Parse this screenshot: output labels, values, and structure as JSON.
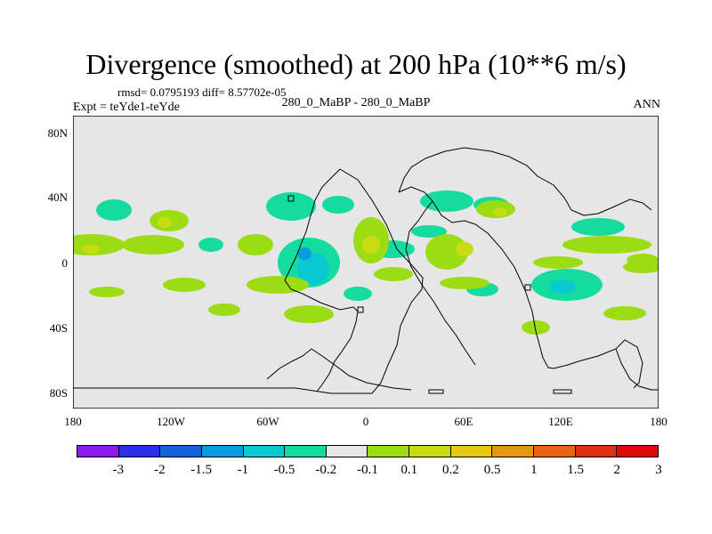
{
  "title": "Divergence (smoothed) at 200 hPa (10**6 m/s)",
  "rmsd_text": "rmsd= 0.0795193 diff= 8.57702e-05",
  "expt_text": "Expt = teYde1-teYde",
  "case_text": "280_0_MaBP - 280_0_MaBP",
  "season": "ANN",
  "y_ticks": [
    "80N",
    "40N",
    "0",
    "40S",
    "80S"
  ],
  "x_ticks": [
    "180",
    "120W",
    "60W",
    "0",
    "60E",
    "120E",
    "180"
  ],
  "colorbar": {
    "colors": [
      "#8c1aec",
      "#2d2de6",
      "#1463d6",
      "#0a9bdc",
      "#0ac8d2",
      "#14dca0",
      "#e6e6e6",
      "#9bdc14",
      "#c8dc14",
      "#e6c814",
      "#e69614",
      "#e66414",
      "#dc3214",
      "#dc0a0a"
    ],
    "labels": [
      "-3",
      "-2",
      "-1.5",
      "-1",
      "-0.5",
      "-0.2",
      "-0.1",
      "0.1",
      "0.2",
      "0.5",
      "1",
      "1.5",
      "2",
      "3"
    ]
  },
  "chart_data": {
    "type": "filled-contour-map",
    "variable": "Divergence (smoothed) at 200 hPa",
    "units": "10**6 m/s",
    "lon_range": [
      -180,
      180
    ],
    "lat_range": [
      -90,
      90
    ],
    "contour_levels": [
      -3,
      -2,
      -1.5,
      -1,
      -0.5,
      -0.2,
      -0.1,
      0.1,
      0.2,
      0.5,
      1,
      1.5,
      2,
      3
    ],
    "rmsd": 0.0795193,
    "diff": 8.57702e-05,
    "note": "Mostly near-zero field with weak +/-0.1 to 0.5 patches in tropics"
  }
}
